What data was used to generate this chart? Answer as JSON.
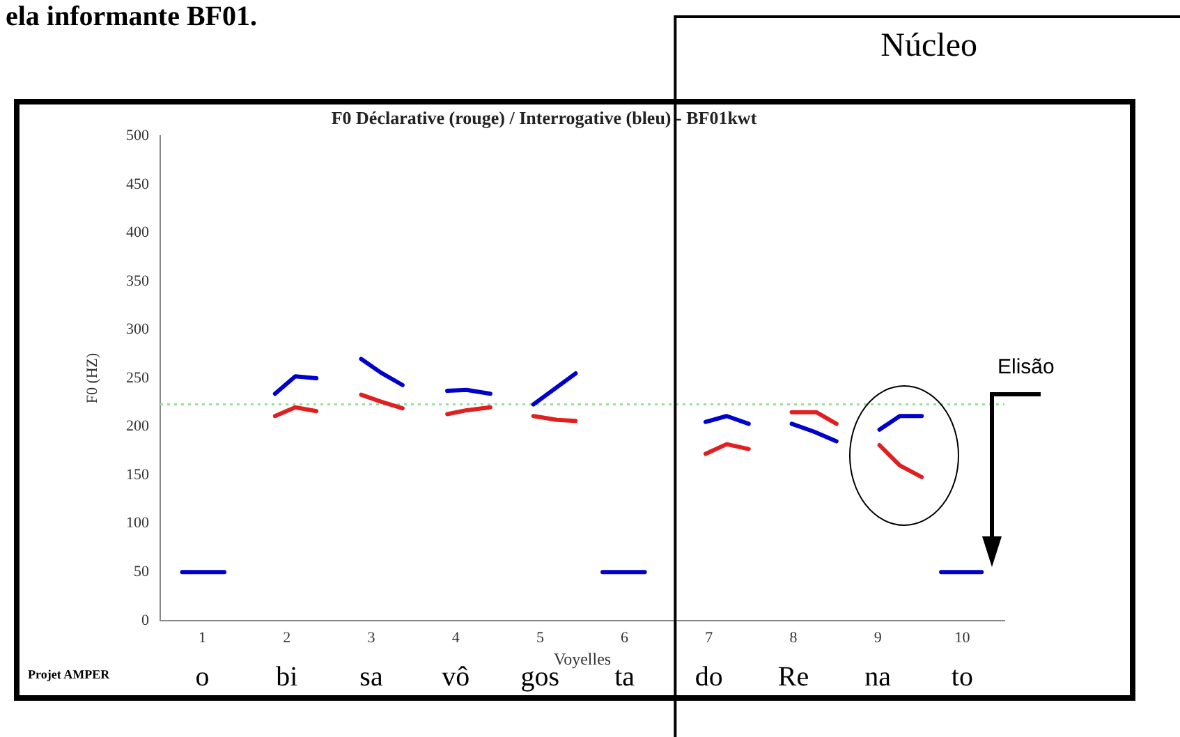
{
  "chart_data": {
    "type": "line",
    "title": "F0 Déclarative (rouge) / Interrogative (bleu) - BF01kwt",
    "xlabel": "Voyelles",
    "ylabel": "F0 (HZ)",
    "xlim": [
      0.5,
      10.5
    ],
    "xticks": [
      1,
      2,
      3,
      4,
      5,
      6,
      7,
      8,
      9,
      10
    ],
    "ylim": [
      0,
      500
    ],
    "yticks": [
      0,
      50,
      100,
      150,
      200,
      250,
      300,
      350,
      400,
      450,
      500
    ],
    "grid": false,
    "legend": false,
    "marker": "none",
    "line_style": "solid",
    "series": [
      {
        "color": "#0000cc",
        "x": [
          0.76,
          1.26,
          1.5,
          1.86,
          2.1,
          2.35,
          2.6,
          2.88,
          3.11,
          3.37,
          3.6,
          3.9,
          4.13,
          4.41,
          4.6,
          4.92,
          5.17,
          5.42,
          5.6,
          5.74,
          6.24,
          6.6,
          6.96,
          7.21,
          7.47,
          7.7,
          7.98,
          8.24,
          8.51,
          8.8,
          9.02,
          9.26,
          9.52,
          9.6,
          9.75,
          10.23
        ],
        "values": [
          50,
          50,
          null,
          234,
          252,
          250,
          null,
          270,
          256,
          243,
          null,
          237,
          238,
          234,
          null,
          223,
          239,
          255,
          null,
          50,
          50,
          null,
          205,
          211,
          203,
          null,
          203,
          195,
          185,
          null,
          197,
          211,
          211,
          null,
          50,
          50
        ]
      },
      {
        "color": "#e02020",
        "x": [
          1.86,
          2.1,
          2.35,
          2.6,
          2.88,
          3.11,
          3.37,
          3.6,
          3.9,
          4.13,
          4.41,
          4.6,
          4.92,
          5.2,
          5.42,
          6.6,
          6.96,
          7.21,
          7.47,
          7.7,
          7.98,
          8.27,
          8.51,
          8.8,
          9.02,
          9.26,
          9.52
        ],
        "values": [
          211,
          220,
          216,
          null,
          233,
          226,
          219,
          null,
          213,
          217,
          220,
          null,
          211,
          207,
          206,
          null,
          172,
          182,
          177,
          null,
          215,
          215,
          203,
          null,
          181,
          160,
          148
        ]
      }
    ],
    "ref_lines": [
      {
        "axis": "y",
        "value": 223,
        "color": "#99dd99",
        "line_style": "dotted"
      },
      {
        "axis": "x",
        "value": 6.6,
        "label": "Núcleo",
        "color": "#000000",
        "line_style": "solid"
      }
    ],
    "annotations": [
      "ela informante BF01.",
      "Elisão",
      "Projet AMPER",
      "o",
      "bi",
      "sa",
      "vô",
      "gos",
      "ta",
      "do",
      "Re",
      "na",
      "to"
    ]
  }
}
